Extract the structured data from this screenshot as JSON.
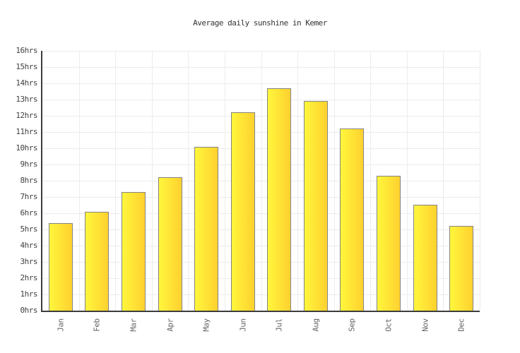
{
  "title": "Average daily sunshine in Kemer",
  "chart_data": {
    "type": "bar",
    "title": "Average daily sunshine in Kemer",
    "categories": [
      "Jan",
      "Feb",
      "Mar",
      "Apr",
      "May",
      "Jun",
      "Jul",
      "Aug",
      "Sep",
      "Oct",
      "Nov",
      "Dec"
    ],
    "values": [
      5.4,
      6.1,
      7.3,
      8.2,
      10.1,
      12.2,
      13.7,
      12.9,
      11.2,
      8.3,
      6.5,
      5.2
    ],
    "xlabel": "",
    "ylabel": "",
    "ylim": [
      0,
      16
    ],
    "ytick_step": 1,
    "ytick_suffix": "hrs",
    "grid": true,
    "legend": "none",
    "colors": {
      "bar_gradient_left": "#fff63c",
      "bar_gradient_right": "#ffd12f",
      "bar_border": "#848484",
      "gridline": "#ececec",
      "axis": "#3d3d3d",
      "title_text": "#333333",
      "ytick_text": "#404040",
      "xtick_text": "#666666",
      "background": "#ffffff"
    }
  }
}
